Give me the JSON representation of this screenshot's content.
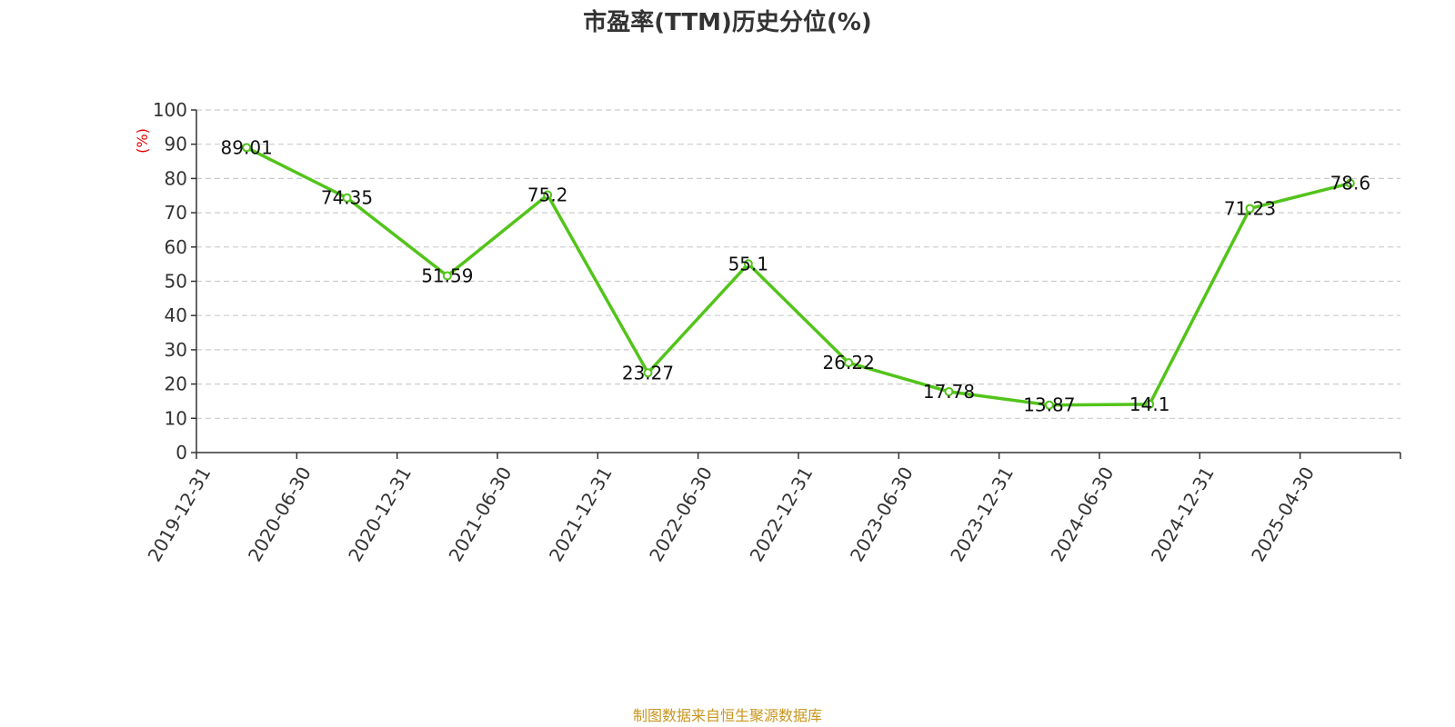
{
  "chart_data": {
    "type": "line",
    "title": "市盈率(TTM)历史分位(%)",
    "xlabel": "",
    "ylabel": "(%)",
    "categories": [
      "2019-12-31",
      "2020-06-30",
      "2020-12-31",
      "2021-06-30",
      "2021-12-31",
      "2022-06-30",
      "2022-12-31",
      "2023-06-30",
      "2023-12-31",
      "2024-06-30",
      "2024-12-31",
      "2025-04-30"
    ],
    "values": [
      89.01,
      74.35,
      51.59,
      75.2,
      23.27,
      55.1,
      26.22,
      17.78,
      13.87,
      14.1,
      71.23,
      78.6
    ],
    "value_labels": [
      "89.01",
      "74.35",
      "51.59",
      "75.2",
      "23.27",
      "55.1",
      "26.22",
      "17.78",
      "13.87",
      "14.1",
      "71.23",
      "78.6"
    ],
    "ylim": [
      0,
      100
    ],
    "yticks": [
      0,
      10,
      20,
      30,
      40,
      50,
      60,
      70,
      80,
      90,
      100
    ],
    "grid": true,
    "colors": {
      "line": "#52c41a",
      "ylabel": "#e60000",
      "source": "#c8961e",
      "grid": "#cccccc",
      "axis": "#333333"
    }
  },
  "source": "制图数据来自恒生聚源数据库"
}
